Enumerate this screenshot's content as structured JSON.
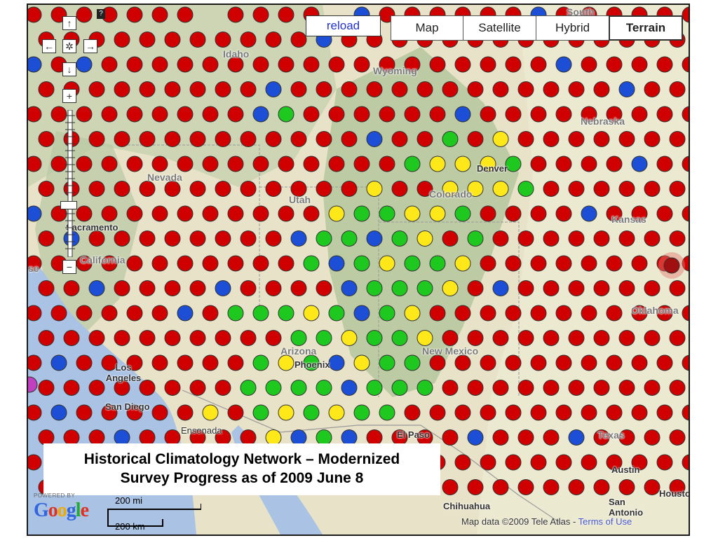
{
  "map": {
    "region": "Western United States",
    "active_view": "Terrain",
    "colors": {
      "red": "#d00000",
      "blue": "#1c4fd6",
      "green": "#1ec81e",
      "yellow": "#ffe81a",
      "magenta": "#c040c0",
      "terrain_base": "#e8e3c8",
      "mountains": "#b9c9a4",
      "ocean": "#aac2e4"
    }
  },
  "controls": {
    "pan_up_icon": "↑",
    "pan_left_icon": "←",
    "pan_center_icon": "✲",
    "pan_right_icon": "→",
    "pan_down_icon": "↓",
    "zoom_in_icon": "+",
    "zoom_out_icon": "−",
    "help_icon": "?",
    "reload_label": "reload",
    "map_types": [
      "Map",
      "Satellite",
      "Hybrid",
      "Terrain"
    ]
  },
  "labels": {
    "states": [
      "South",
      "Idaho",
      "Wyoming",
      "Nebraska",
      "Nevada",
      "Utah",
      "Colorado",
      "Kansas",
      "California",
      "Arizona",
      "New Mexico",
      "Oklahoma",
      "Texas"
    ],
    "cities": [
      "Denver",
      "Sacramento",
      "Los Angeles",
      "San Diego",
      "Ensenada",
      "Phoenix",
      "El Paso",
      "Chihuahua",
      "Austin",
      "San Antonio",
      "Houston"
    ],
    "partial_city_left": "se"
  },
  "caption": {
    "line1": "Historical Climatology Network – Modernized",
    "line2": "Survey Progress as of 2009 June 8"
  },
  "branding": {
    "powered_by": "POWERED BY",
    "google": "Google"
  },
  "scale": {
    "miles": "200 mi",
    "km": "200 km"
  },
  "attribution": {
    "text": "Map data ©2009 Tele Atlas - ",
    "terms": "Terms of Use"
  },
  "stations": {
    "grid": [
      "rrrrrrr-RRrr-brrrrrrbrrrrrrr",
      "rRrrrrrrrrrbrrrrrrrrrrrrrrrr",
      "brbrrrrrrrrrrrrrrrrrrbrrrrrrr",
      "rrrrrrrrrbrrrrrrrrrrrrrbrrrrr",
      "rrrrrrrrrbgrrrrrrbrrrrrrrrrrr",
      "rrrrrrrrrrrrrbrrgryrrrrrrrrr",
      "rrrrrrrrrrrrrrrgyyygrrrrbrrr",
      "rrrrrrrrrrrrryrryyygrrrrrrrr",
      "brrrrrrrrrrryggyygrrrrbrrrrb",
      "rbrrrrrrrrbggbgyrgrrrrrrrrrr",
      "rrrrrrrrrrrgbgyggyrrrrrrrrrr",
      "rrbrrrrbrrrrbgggyrbrrrrrrrrr",
      "rrrrrrbrgggygbgyrrrrrrrrrrrbr",
      "rrrrrrrrrrggyggyrrrrrrrrrrrrr",
      "rbrrrrrrrgygbyggrrrrrrrrrrrr",
      "rrrrrrrrggggbgggrrrrrrrrrrrrr",
      "rbrrrrryrgygyggrrrrrrrrrrrrrr",
      "rrrbrrrrrybgbrrrrbrrrbrrrrrrr",
      "rrrrrrrrrrggrrrrrrrrrrrrrrrrr",
      "rrrrrrrrrrrrrrrrrrrrrrrrrrrrr"
    ]
  }
}
